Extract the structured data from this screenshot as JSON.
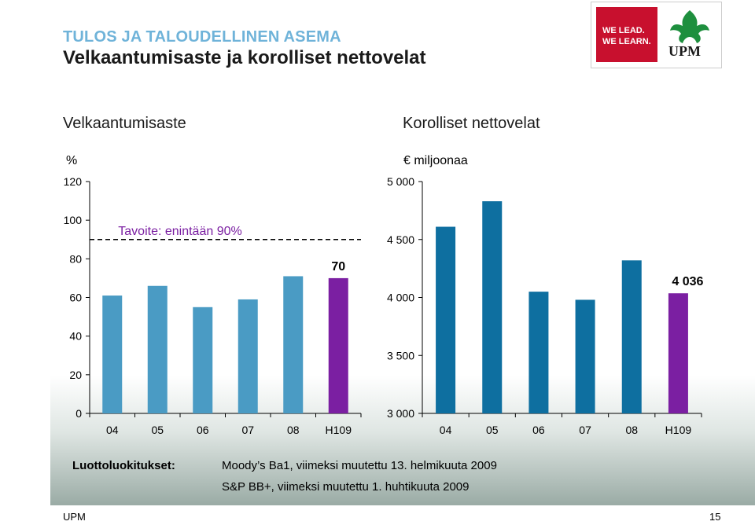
{
  "header": {
    "subtitle": "TULOS JA TALOUDELLINEN ASEMA",
    "title": "Velkaantumisaste ja korolliset nettovelat"
  },
  "logo": {
    "slogan_line1": "WE LEAD.",
    "slogan_line2": "WE LEARN.",
    "brand": "UPM",
    "icon": "griffin-icon",
    "brand_color": "#c8102e",
    "griffin_color": "#1e8f3e"
  },
  "colors": {
    "bar_left": "#4a9bc4",
    "bar_right": "#0e6fa0",
    "highlight": "#7b1fa2"
  },
  "chart_data": [
    {
      "type": "bar",
      "title": "Velkaantumisaste",
      "ylabel": "%",
      "categories": [
        "04",
        "05",
        "06",
        "07",
        "08",
        "H109"
      ],
      "values": [
        61,
        66,
        55,
        59,
        71,
        70
      ],
      "ylim": [
        0,
        120
      ],
      "yticks": [
        "0",
        "20",
        "40",
        "60",
        "80",
        "100",
        "120"
      ],
      "highlight_index": 5,
      "data_labels": [
        {
          "index": 5,
          "text": "70"
        }
      ],
      "target_line": {
        "value": 90,
        "label": "Tavoite: enintään 90%"
      },
      "grid": false
    },
    {
      "type": "bar",
      "title": "Korolliset nettovelat",
      "ylabel": "€ miljoonaa",
      "categories": [
        "04",
        "05",
        "06",
        "07",
        "08",
        "H109"
      ],
      "values": [
        4610,
        4830,
        4050,
        3980,
        4320,
        4036
      ],
      "ylim": [
        3000,
        5000
      ],
      "yticks": [
        "3 000",
        "3 500",
        "4 000",
        "4 500",
        "5 000"
      ],
      "highlight_index": 5,
      "data_labels": [
        {
          "index": 5,
          "text": "4 036"
        }
      ],
      "grid": false
    }
  ],
  "ratings": {
    "label": "Luottoluokitukset:",
    "lines": [
      "Moody’s Ba1, viimeksi muutettu 13. helmikuuta 2009",
      "S&P BB+, viimeksi muutettu 1. huhtikuuta 2009"
    ]
  },
  "footer": {
    "left": "UPM",
    "right": "15"
  }
}
